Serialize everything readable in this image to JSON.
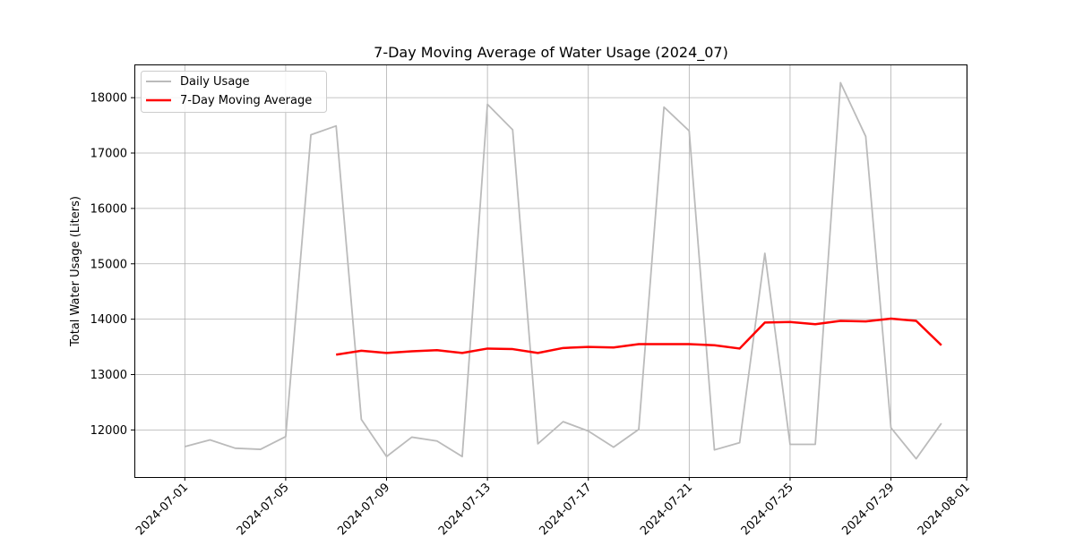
{
  "chart_data": {
    "type": "line",
    "title": "7-Day Moving Average of Water Usage (2024_07)",
    "xlabel": "",
    "ylabel": "Total Water Usage (Liters)",
    "x_tick_labels": [
      "2024-07-01",
      "2024-07-05",
      "2024-07-09",
      "2024-07-13",
      "2024-07-17",
      "2024-07-21",
      "2024-07-25",
      "2024-07-29",
      "2024-08-01"
    ],
    "y_ticks": [
      12000,
      13000,
      14000,
      15000,
      16000,
      17000,
      18000
    ],
    "xlim": [
      "2024-06-29",
      "2024-08-01"
    ],
    "ylim": [
      11150,
      18600
    ],
    "grid": true,
    "legend_position": "top-left",
    "x": [
      "2024-07-01",
      "2024-07-02",
      "2024-07-03",
      "2024-07-04",
      "2024-07-05",
      "2024-07-06",
      "2024-07-07",
      "2024-07-08",
      "2024-07-09",
      "2024-07-10",
      "2024-07-11",
      "2024-07-12",
      "2024-07-13",
      "2024-07-14",
      "2024-07-15",
      "2024-07-16",
      "2024-07-17",
      "2024-07-18",
      "2024-07-19",
      "2024-07-20",
      "2024-07-21",
      "2024-07-22",
      "2024-07-23",
      "2024-07-24",
      "2024-07-25",
      "2024-07-26",
      "2024-07-27",
      "2024-07-28",
      "2024-07-29",
      "2024-07-30",
      "2024-07-31"
    ],
    "series": [
      {
        "name": "Daily Usage",
        "color": "#bbbbbb",
        "values": [
          11700,
          11820,
          11670,
          11650,
          11880,
          17330,
          17490,
          12190,
          11520,
          11870,
          11800,
          11520,
          17880,
          17420,
          11750,
          12150,
          11980,
          11690,
          12010,
          17830,
          17400,
          11640,
          11770,
          15190,
          11740,
          11740,
          18270,
          17300,
          12040,
          11480,
          12120
        ]
      },
      {
        "name": "7-Day Moving Average",
        "color": "#ff0000",
        "values": [
          null,
          null,
          null,
          null,
          null,
          null,
          13360,
          13430,
          13390,
          13420,
          13440,
          13390,
          13470,
          13460,
          13390,
          13480,
          13500,
          13490,
          13550,
          13550,
          13550,
          13530,
          13470,
          13940,
          13950,
          13910,
          13970,
          13960,
          14010,
          13970,
          13530
        ]
      }
    ]
  }
}
